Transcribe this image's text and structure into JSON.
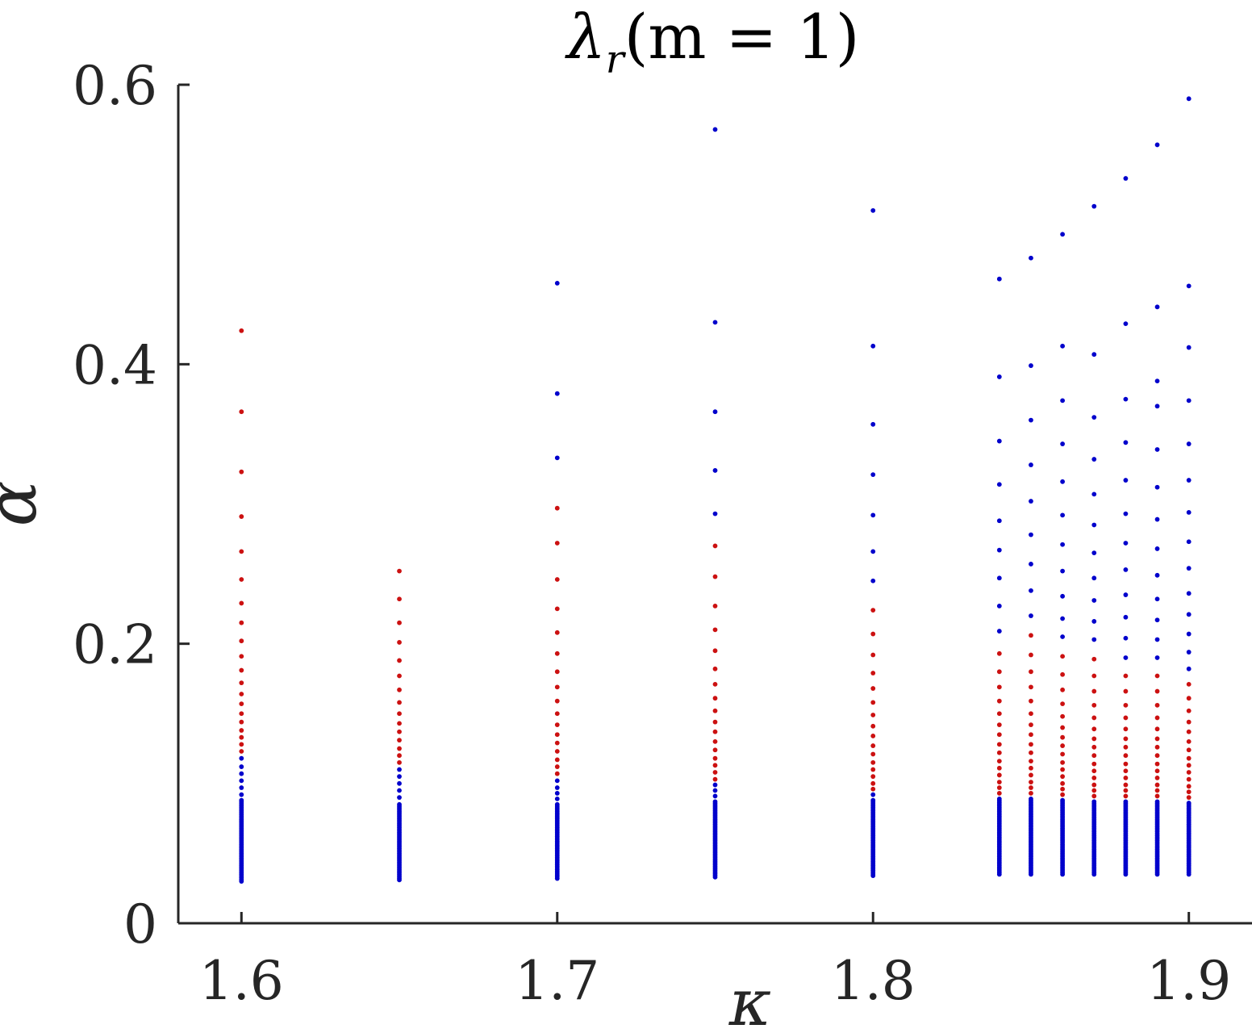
{
  "chart_data": {
    "type": "scatter",
    "title": "λr(m = 1)",
    "title_main": "λ",
    "title_sub": "r",
    "title_rest": "(m = 1)",
    "xlabel": "κ",
    "ylabel": "α",
    "xlim": [
      1.58,
      1.92
    ],
    "ylim": [
      0,
      0.6
    ],
    "xticks": [
      1.6,
      1.7,
      1.8,
      1.9
    ],
    "xtick_labels": [
      "1.6",
      "1.7",
      "1.8",
      "1.9"
    ],
    "yticks": [
      0,
      0.2,
      0.4,
      0.6
    ],
    "ytick_labels": [
      "0",
      "0.2",
      "0.4",
      "0.6"
    ],
    "colors": {
      "blue": "#0000cc",
      "red": "#cc1111",
      "axis": "#262626"
    },
    "columns": [
      {
        "x": 1.6,
        "blue_dense_range": [
          0.03,
          0.088
        ],
        "blue_sparse": [
          0.092,
          0.097,
          0.102,
          0.107,
          0.112,
          0.118
        ],
        "red": [
          0.123,
          0.128,
          0.133,
          0.138,
          0.144,
          0.15,
          0.157,
          0.164,
          0.172,
          0.181,
          0.191,
          0.202,
          0.215,
          0.229,
          0.246,
          0.266,
          0.291,
          0.323,
          0.366,
          0.424
        ],
        "blue_upper": []
      },
      {
        "x": 1.65,
        "blue_dense_range": [
          0.031,
          0.085
        ],
        "blue_sparse": [
          0.09,
          0.095,
          0.1,
          0.105,
          0.11
        ],
        "red": [
          0.115,
          0.12,
          0.125,
          0.131,
          0.137,
          0.143,
          0.15,
          0.158,
          0.167,
          0.177,
          0.188,
          0.201,
          0.215,
          0.232,
          0.252
        ],
        "blue_upper": []
      },
      {
        "x": 1.7,
        "blue_dense_range": [
          0.032,
          0.085
        ],
        "blue_sparse": [
          0.089,
          0.093,
          0.097,
          0.102
        ],
        "red": [
          0.107,
          0.112,
          0.117,
          0.123,
          0.129,
          0.135,
          0.142,
          0.15,
          0.159,
          0.169,
          0.18,
          0.193,
          0.208,
          0.225,
          0.246,
          0.272,
          0.297
        ],
        "blue_upper": [
          0.333,
          0.379,
          0.458
        ]
      },
      {
        "x": 1.75,
        "blue_dense_range": [
          0.033,
          0.087
        ],
        "blue_sparse": [
          0.091,
          0.095,
          0.099
        ],
        "red": [
          0.103,
          0.108,
          0.113,
          0.118,
          0.124,
          0.13,
          0.137,
          0.144,
          0.152,
          0.161,
          0.171,
          0.182,
          0.195,
          0.21,
          0.227,
          0.248,
          0.27
        ],
        "blue_upper": [
          0.293,
          0.324,
          0.366,
          0.43,
          0.568
        ]
      },
      {
        "x": 1.8,
        "blue_dense_range": [
          0.034,
          0.088
        ],
        "blue_sparse": [
          0.092
        ],
        "red": [
          0.096,
          0.1,
          0.105,
          0.11,
          0.115,
          0.121,
          0.127,
          0.134,
          0.141,
          0.149,
          0.158,
          0.168,
          0.179,
          0.192,
          0.207,
          0.224
        ],
        "blue_upper": [
          0.245,
          0.266,
          0.292,
          0.321,
          0.357,
          0.413,
          0.51
        ]
      },
      {
        "x": 1.84,
        "blue_dense_range": [
          0.035,
          0.089
        ],
        "blue_sparse": [],
        "red": [
          0.093,
          0.097,
          0.101,
          0.106,
          0.111,
          0.116,
          0.122,
          0.128,
          0.135,
          0.142,
          0.15,
          0.159,
          0.169,
          0.18,
          0.193
        ],
        "blue_upper": [
          0.209,
          0.227,
          0.247,
          0.267,
          0.288,
          0.314,
          0.345,
          0.391,
          0.461
        ]
      },
      {
        "x": 1.85,
        "blue_dense_range": [
          0.035,
          0.089
        ],
        "blue_sparse": [],
        "red": [
          0.093,
          0.097,
          0.101,
          0.106,
          0.111,
          0.116,
          0.122,
          0.128,
          0.135,
          0.142,
          0.15,
          0.159,
          0.169,
          0.18,
          0.192,
          0.206
        ],
        "blue_upper": [
          0.22,
          0.238,
          0.257,
          0.278,
          0.302,
          0.328,
          0.36,
          0.399,
          0.476
        ]
      },
      {
        "x": 1.86,
        "blue_dense_range": [
          0.035,
          0.088
        ],
        "blue_sparse": [],
        "red": [
          0.092,
          0.096,
          0.1,
          0.105,
          0.11,
          0.115,
          0.121,
          0.127,
          0.133,
          0.14,
          0.148,
          0.157,
          0.167,
          0.178,
          0.191
        ],
        "blue_upper": [
          0.205,
          0.218,
          0.234,
          0.252,
          0.271,
          0.292,
          0.316,
          0.343,
          0.374,
          0.413,
          0.493
        ]
      },
      {
        "x": 1.87,
        "blue_dense_range": [
          0.035,
          0.087
        ],
        "blue_sparse": [],
        "red": [
          0.091,
          0.095,
          0.099,
          0.104,
          0.109,
          0.114,
          0.12,
          0.126,
          0.132,
          0.139,
          0.147,
          0.156,
          0.166,
          0.177,
          0.189
        ],
        "blue_upper": [
          0.203,
          0.216,
          0.231,
          0.247,
          0.265,
          0.285,
          0.307,
          0.332,
          0.362,
          0.407,
          0.513
        ]
      },
      {
        "x": 1.88,
        "blue_dense_range": [
          0.035,
          0.087
        ],
        "blue_sparse": [],
        "red": [
          0.091,
          0.095,
          0.099,
          0.104,
          0.109,
          0.114,
          0.12,
          0.126,
          0.132,
          0.139,
          0.147,
          0.156,
          0.166,
          0.177
        ],
        "blue_upper": [
          0.19,
          0.204,
          0.219,
          0.235,
          0.253,
          0.272,
          0.293,
          0.317,
          0.344,
          0.375,
          0.429,
          0.533
        ]
      },
      {
        "x": 1.89,
        "blue_dense_range": [
          0.035,
          0.087
        ],
        "blue_sparse": [],
        "red": [
          0.091,
          0.095,
          0.099,
          0.104,
          0.109,
          0.114,
          0.12,
          0.126,
          0.132,
          0.139,
          0.147,
          0.156,
          0.166,
          0.177
        ],
        "blue_upper": [
          0.19,
          0.203,
          0.217,
          0.232,
          0.249,
          0.268,
          0.289,
          0.312,
          0.339,
          0.37,
          0.388,
          0.441,
          0.557
        ]
      },
      {
        "x": 1.9,
        "blue_dense_range": [
          0.035,
          0.086
        ],
        "blue_sparse": [],
        "red": [
          0.09,
          0.094,
          0.098,
          0.103,
          0.108,
          0.113,
          0.118,
          0.124,
          0.13,
          0.137,
          0.144,
          0.152,
          0.161,
          0.171
        ],
        "blue_upper": [
          0.182,
          0.194,
          0.207,
          0.221,
          0.236,
          0.254,
          0.273,
          0.294,
          0.317,
          0.343,
          0.374,
          0.412,
          0.456,
          0.59
        ]
      }
    ]
  }
}
